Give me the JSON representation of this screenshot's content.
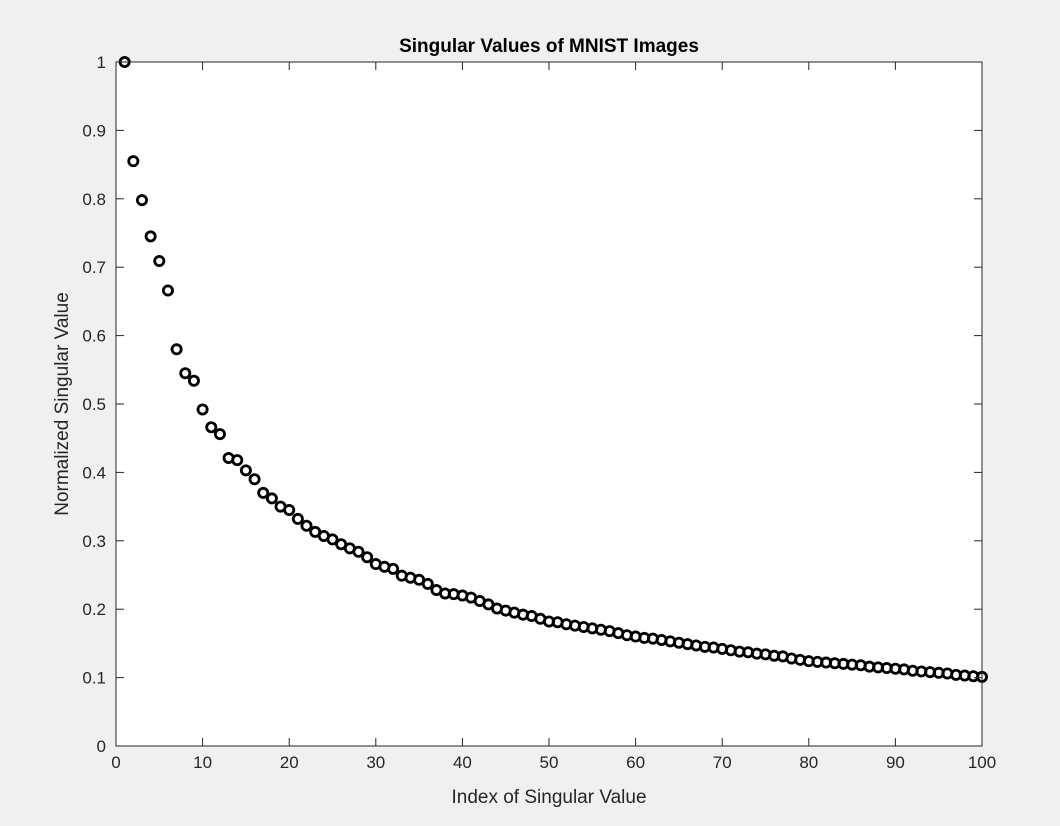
{
  "chart_data": {
    "type": "scatter",
    "title": "Singular Values of MNIST Images",
    "xlabel": "Index of Singular Value",
    "ylabel": "Normalized Singular Value",
    "xlim": [
      0,
      100
    ],
    "ylim": [
      0,
      1
    ],
    "xticks": [
      0,
      10,
      20,
      30,
      40,
      50,
      60,
      70,
      80,
      90,
      100
    ],
    "yticks": [
      0,
      0.1,
      0.2,
      0.3,
      0.4,
      0.5,
      0.6,
      0.7,
      0.8,
      0.9,
      1
    ],
    "xtick_labels": [
      "0",
      "10",
      "20",
      "30",
      "40",
      "50",
      "60",
      "70",
      "80",
      "90",
      "100"
    ],
    "ytick_labels": [
      "0",
      "0.1",
      "0.2",
      "0.3",
      "0.4",
      "0.5",
      "0.6",
      "0.7",
      "0.8",
      "0.9",
      "1"
    ],
    "grid": false,
    "marker": "circle",
    "marker_color": "#000000",
    "x": [
      1,
      2,
      3,
      4,
      5,
      6,
      7,
      8,
      9,
      10,
      11,
      12,
      13,
      14,
      15,
      16,
      17,
      18,
      19,
      20,
      21,
      22,
      23,
      24,
      25,
      26,
      27,
      28,
      29,
      30,
      31,
      32,
      33,
      34,
      35,
      36,
      37,
      38,
      39,
      40,
      41,
      42,
      43,
      44,
      45,
      46,
      47,
      48,
      49,
      50,
      51,
      52,
      53,
      54,
      55,
      56,
      57,
      58,
      59,
      60,
      61,
      62,
      63,
      64,
      65,
      66,
      67,
      68,
      69,
      70,
      71,
      72,
      73,
      74,
      75,
      76,
      77,
      78,
      79,
      80,
      81,
      82,
      83,
      84,
      85,
      86,
      87,
      88,
      89,
      90,
      91,
      92,
      93,
      94,
      95,
      96,
      97,
      98,
      99,
      100
    ],
    "y": [
      1.0,
      0.855,
      0.798,
      0.745,
      0.709,
      0.666,
      0.58,
      0.545,
      0.534,
      0.492,
      0.466,
      0.456,
      0.421,
      0.418,
      0.403,
      0.39,
      0.37,
      0.362,
      0.35,
      0.345,
      0.332,
      0.322,
      0.313,
      0.307,
      0.302,
      0.295,
      0.289,
      0.284,
      0.276,
      0.266,
      0.262,
      0.259,
      0.249,
      0.246,
      0.243,
      0.237,
      0.228,
      0.223,
      0.222,
      0.22,
      0.217,
      0.212,
      0.207,
      0.201,
      0.198,
      0.195,
      0.192,
      0.19,
      0.186,
      0.182,
      0.181,
      0.178,
      0.176,
      0.174,
      0.172,
      0.17,
      0.168,
      0.165,
      0.162,
      0.16,
      0.158,
      0.157,
      0.155,
      0.153,
      0.151,
      0.149,
      0.147,
      0.145,
      0.144,
      0.142,
      0.14,
      0.138,
      0.137,
      0.135,
      0.134,
      0.132,
      0.131,
      0.128,
      0.126,
      0.124,
      0.123,
      0.122,
      0.121,
      0.12,
      0.119,
      0.118,
      0.116,
      0.115,
      0.114,
      0.113,
      0.112,
      0.11,
      0.109,
      0.108,
      0.107,
      0.106,
      0.104,
      0.103,
      0.102,
      0.101
    ]
  }
}
